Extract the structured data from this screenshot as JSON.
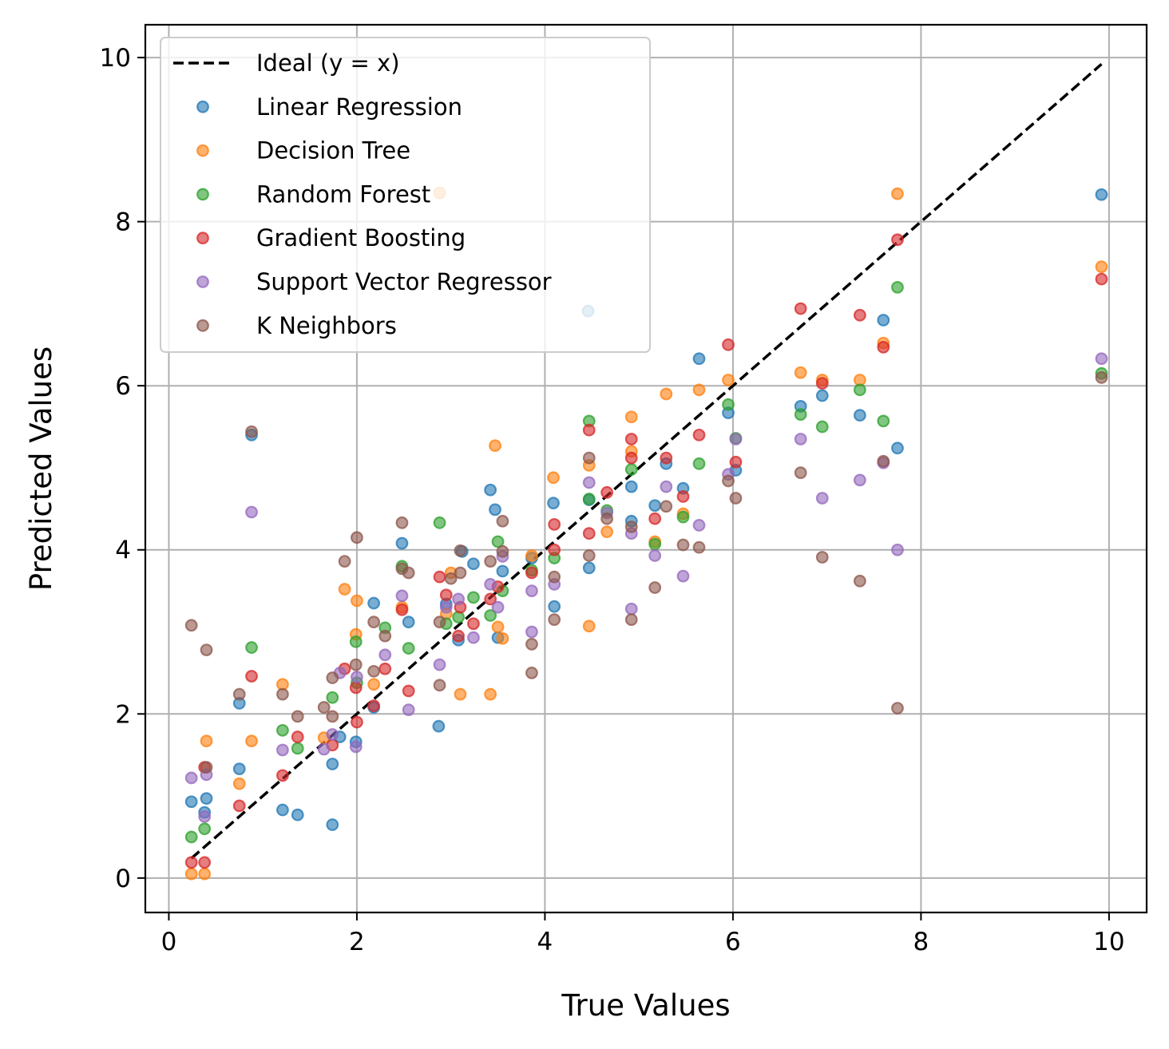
{
  "chart_data": {
    "type": "scatter",
    "title": "",
    "xlabel": "True Values",
    "ylabel": "Predicted Values",
    "xlim": [
      -0.25,
      10.4
    ],
    "ylim": [
      -0.42,
      10.4
    ],
    "xticks": [
      0,
      2,
      4,
      6,
      8,
      10
    ],
    "yticks": [
      0,
      2,
      4,
      6,
      8,
      10
    ],
    "grid": true,
    "legend_position": "upper-left",
    "ideal_line": {
      "name": "Ideal (y = x)",
      "from": 0.24,
      "to": 9.92,
      "color": "#000000",
      "style": "dashed"
    },
    "series": [
      {
        "name": "Linear Regression",
        "color": "#1f77b4",
        "points": [
          [
            0.24,
            0.93
          ],
          [
            0.4,
            0.97
          ],
          [
            0.38,
            0.8
          ],
          [
            0.75,
            2.13
          ],
          [
            0.75,
            1.33
          ],
          [
            0.88,
            5.4
          ],
          [
            1.21,
            0.83
          ],
          [
            1.37,
            0.77
          ],
          [
            1.74,
            0.65
          ],
          [
            1.74,
            1.39
          ],
          [
            1.82,
            1.72
          ],
          [
            1.99,
            1.66
          ],
          [
            2.18,
            3.35
          ],
          [
            2.18,
            2.08
          ],
          [
            2.48,
            4.08
          ],
          [
            2.55,
            3.12
          ],
          [
            2.87,
            1.85
          ],
          [
            2.95,
            3.34
          ],
          [
            3.08,
            2.9
          ],
          [
            3.12,
            3.98
          ],
          [
            3.24,
            3.83
          ],
          [
            3.42,
            4.73
          ],
          [
            3.47,
            4.49
          ],
          [
            3.5,
            2.93
          ],
          [
            3.55,
            3.74
          ],
          [
            3.86,
            3.9
          ],
          [
            4.09,
            4.57
          ],
          [
            4.1,
            3.31
          ],
          [
            4.46,
            6.91
          ],
          [
            4.47,
            3.78
          ],
          [
            4.47,
            4.61
          ],
          [
            4.92,
            4.35
          ],
          [
            4.92,
            4.77
          ],
          [
            5.17,
            4.54
          ],
          [
            5.29,
            5.05
          ],
          [
            5.47,
            4.75
          ],
          [
            5.64,
            6.33
          ],
          [
            5.95,
            5.67
          ],
          [
            6.03,
            4.97
          ],
          [
            6.72,
            5.75
          ],
          [
            6.95,
            5.88
          ],
          [
            7.35,
            5.64
          ],
          [
            7.6,
            6.8
          ],
          [
            7.75,
            5.24
          ],
          [
            9.92,
            8.33
          ]
        ]
      },
      {
        "name": "Decision Tree",
        "color": "#ff7f0e",
        "points": [
          [
            0.24,
            0.05
          ],
          [
            0.38,
            0.05
          ],
          [
            0.4,
            1.67
          ],
          [
            0.75,
            1.15
          ],
          [
            0.88,
            1.67
          ],
          [
            1.21,
            2.36
          ],
          [
            1.65,
            1.71
          ],
          [
            1.87,
            3.52
          ],
          [
            1.99,
            2.97
          ],
          [
            2.0,
            3.38
          ],
          [
            2.18,
            2.36
          ],
          [
            2.48,
            3.3
          ],
          [
            2.88,
            8.35
          ],
          [
            2.95,
            3.22
          ],
          [
            3.0,
            3.72
          ],
          [
            3.1,
            2.24
          ],
          [
            3.42,
            2.24
          ],
          [
            3.47,
            5.27
          ],
          [
            3.5,
            3.06
          ],
          [
            3.55,
            2.92
          ],
          [
            3.86,
            3.93
          ],
          [
            4.09,
            4.88
          ],
          [
            4.47,
            3.07
          ],
          [
            4.47,
            5.03
          ],
          [
            4.66,
            4.22
          ],
          [
            4.92,
            5.62
          ],
          [
            4.92,
            5.2
          ],
          [
            5.17,
            4.1
          ],
          [
            5.29,
            5.9
          ],
          [
            5.47,
            4.44
          ],
          [
            5.64,
            5.95
          ],
          [
            5.95,
            6.07
          ],
          [
            6.72,
            6.16
          ],
          [
            6.95,
            6.07
          ],
          [
            7.35,
            6.07
          ],
          [
            7.6,
            6.52
          ],
          [
            7.75,
            8.34
          ],
          [
            9.92,
            7.45
          ]
        ]
      },
      {
        "name": "Random Forest",
        "color": "#2ca02c",
        "points": [
          [
            0.24,
            0.5
          ],
          [
            0.38,
            0.6
          ],
          [
            0.88,
            2.81
          ],
          [
            1.21,
            1.8
          ],
          [
            1.37,
            1.58
          ],
          [
            1.74,
            2.2
          ],
          [
            1.99,
            2.88
          ],
          [
            2.0,
            2.38
          ],
          [
            2.3,
            3.05
          ],
          [
            2.48,
            3.8
          ],
          [
            2.55,
            2.8
          ],
          [
            2.88,
            4.33
          ],
          [
            2.95,
            3.1
          ],
          [
            3.08,
            3.18
          ],
          [
            3.24,
            3.42
          ],
          [
            3.42,
            3.2
          ],
          [
            3.5,
            4.1
          ],
          [
            3.55,
            3.5
          ],
          [
            3.86,
            3.75
          ],
          [
            4.1,
            3.9
          ],
          [
            4.47,
            5.57
          ],
          [
            4.47,
            4.62
          ],
          [
            4.66,
            4.48
          ],
          [
            4.92,
            4.98
          ],
          [
            5.17,
            4.07
          ],
          [
            5.47,
            4.4
          ],
          [
            5.64,
            5.05
          ],
          [
            5.95,
            5.77
          ],
          [
            6.03,
            5.36
          ],
          [
            6.72,
            5.65
          ],
          [
            6.95,
            5.5
          ],
          [
            7.35,
            5.95
          ],
          [
            7.6,
            5.57
          ],
          [
            7.75,
            7.2
          ],
          [
            9.92,
            6.15
          ]
        ]
      },
      {
        "name": "Gradient Boosting",
        "color": "#d62728",
        "points": [
          [
            0.24,
            0.19
          ],
          [
            0.38,
            0.19
          ],
          [
            0.38,
            1.35
          ],
          [
            0.75,
            0.88
          ],
          [
            0.88,
            2.46
          ],
          [
            1.21,
            1.25
          ],
          [
            1.37,
            1.72
          ],
          [
            1.74,
            1.62
          ],
          [
            1.87,
            2.55
          ],
          [
            1.99,
            2.32
          ],
          [
            2.0,
            1.9
          ],
          [
            2.18,
            2.1
          ],
          [
            2.3,
            2.55
          ],
          [
            2.48,
            3.27
          ],
          [
            2.55,
            2.28
          ],
          [
            2.88,
            3.67
          ],
          [
            2.95,
            3.45
          ],
          [
            3.08,
            2.95
          ],
          [
            3.1,
            3.3
          ],
          [
            3.24,
            3.1
          ],
          [
            3.42,
            3.4
          ],
          [
            3.5,
            3.55
          ],
          [
            3.86,
            3.72
          ],
          [
            4.1,
            4.31
          ],
          [
            4.1,
            4.0
          ],
          [
            4.47,
            5.46
          ],
          [
            4.47,
            4.2
          ],
          [
            4.66,
            4.7
          ],
          [
            4.92,
            5.35
          ],
          [
            4.92,
            5.12
          ],
          [
            5.17,
            4.38
          ],
          [
            5.29,
            5.12
          ],
          [
            5.47,
            4.65
          ],
          [
            5.64,
            5.4
          ],
          [
            5.95,
            6.5
          ],
          [
            6.03,
            5.07
          ],
          [
            6.72,
            6.94
          ],
          [
            6.95,
            6.03
          ],
          [
            7.35,
            6.86
          ],
          [
            7.6,
            6.47
          ],
          [
            7.75,
            7.78
          ],
          [
            9.92,
            7.3
          ]
        ]
      },
      {
        "name": "Support Vector Regressor",
        "color": "#9467bd",
        "points": [
          [
            0.24,
            1.22
          ],
          [
            0.4,
            1.26
          ],
          [
            0.38,
            0.75
          ],
          [
            0.88,
            4.46
          ],
          [
            1.21,
            1.56
          ],
          [
            1.65,
            1.57
          ],
          [
            1.74,
            1.75
          ],
          [
            1.82,
            2.5
          ],
          [
            1.99,
            1.6
          ],
          [
            2.0,
            2.45
          ],
          [
            2.3,
            2.72
          ],
          [
            2.48,
            3.44
          ],
          [
            2.55,
            2.05
          ],
          [
            2.88,
            2.6
          ],
          [
            2.95,
            3.3
          ],
          [
            3.08,
            3.4
          ],
          [
            3.24,
            2.93
          ],
          [
            3.42,
            3.58
          ],
          [
            3.5,
            3.3
          ],
          [
            3.55,
            3.92
          ],
          [
            3.86,
            3.0
          ],
          [
            3.86,
            3.5
          ],
          [
            4.1,
            3.58
          ],
          [
            4.47,
            4.82
          ],
          [
            4.66,
            4.45
          ],
          [
            4.92,
            4.2
          ],
          [
            4.92,
            3.28
          ],
          [
            5.17,
            3.93
          ],
          [
            5.29,
            4.77
          ],
          [
            5.47,
            3.68
          ],
          [
            5.64,
            4.3
          ],
          [
            5.95,
            4.92
          ],
          [
            6.03,
            5.35
          ],
          [
            6.72,
            5.35
          ],
          [
            6.95,
            4.63
          ],
          [
            7.35,
            4.85
          ],
          [
            7.6,
            5.06
          ],
          [
            7.75,
            4.0
          ],
          [
            9.92,
            6.33
          ]
        ]
      },
      {
        "name": "K Neighbors",
        "color": "#8c564b",
        "points": [
          [
            0.24,
            3.08
          ],
          [
            0.4,
            2.78
          ],
          [
            0.4,
            1.35
          ],
          [
            0.75,
            2.24
          ],
          [
            0.88,
            5.44
          ],
          [
            1.21,
            2.24
          ],
          [
            1.37,
            1.97
          ],
          [
            1.65,
            2.08
          ],
          [
            1.74,
            2.44
          ],
          [
            1.74,
            1.97
          ],
          [
            1.87,
            3.86
          ],
          [
            1.99,
            2.6
          ],
          [
            2.0,
            4.15
          ],
          [
            2.18,
            3.12
          ],
          [
            2.18,
            2.52
          ],
          [
            2.3,
            2.95
          ],
          [
            2.48,
            4.33
          ],
          [
            2.48,
            3.77
          ],
          [
            2.55,
            3.72
          ],
          [
            2.88,
            2.35
          ],
          [
            2.88,
            3.12
          ],
          [
            3.0,
            3.65
          ],
          [
            3.1,
            3.72
          ],
          [
            3.1,
            3.99
          ],
          [
            3.42,
            3.86
          ],
          [
            3.55,
            4.35
          ],
          [
            3.55,
            3.98
          ],
          [
            3.86,
            2.85
          ],
          [
            3.86,
            2.5
          ],
          [
            4.1,
            3.15
          ],
          [
            4.1,
            3.67
          ],
          [
            4.47,
            5.12
          ],
          [
            4.47,
            3.93
          ],
          [
            4.66,
            4.38
          ],
          [
            4.92,
            3.15
          ],
          [
            4.92,
            4.28
          ],
          [
            5.17,
            3.54
          ],
          [
            5.29,
            4.53
          ],
          [
            5.47,
            4.06
          ],
          [
            5.64,
            4.03
          ],
          [
            5.95,
            4.84
          ],
          [
            6.03,
            4.63
          ],
          [
            6.72,
            4.94
          ],
          [
            6.95,
            3.91
          ],
          [
            7.35,
            3.62
          ],
          [
            7.6,
            5.08
          ],
          [
            7.75,
            2.07
          ],
          [
            9.92,
            6.1
          ]
        ]
      }
    ]
  }
}
